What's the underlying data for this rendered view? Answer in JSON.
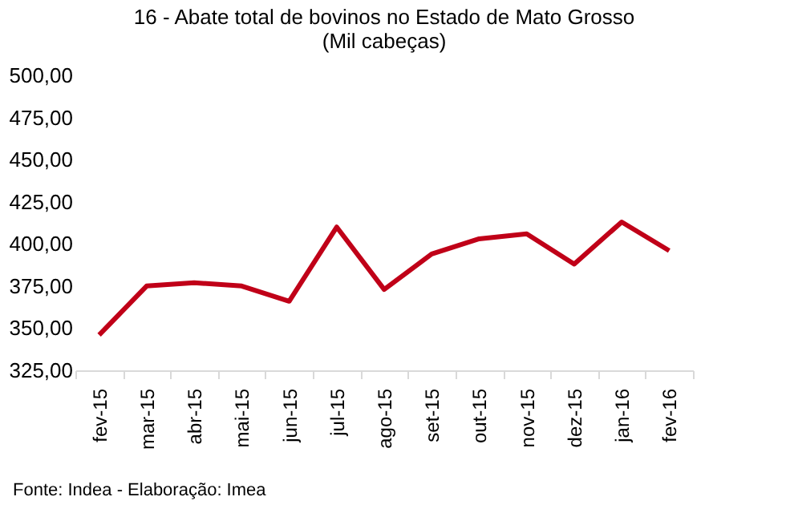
{
  "chart_data": {
    "type": "line",
    "title": [
      "16 - Abate total de bovinos no Estado de Mato Grosso",
      "(Mil cabeças)"
    ],
    "categories": [
      "fev-15",
      "mar-15",
      "abr-15",
      "mai-15",
      "jun-15",
      "jul-15",
      "ago-15",
      "set-15",
      "out-15",
      "nov-15",
      "dez-15",
      "jan-16",
      "fev-16"
    ],
    "series": [
      {
        "color": "#c00018",
        "values": [
          346,
          375,
          377,
          375,
          366,
          410,
          373,
          394,
          403,
          406,
          388,
          413,
          396
        ]
      }
    ],
    "ylim": [
      325,
      500
    ],
    "yticks": [
      {
        "value": 325,
        "label": "325,00"
      },
      {
        "value": 350,
        "label": "350,00"
      },
      {
        "value": 375,
        "label": "375,00"
      },
      {
        "value": 400,
        "label": "400,00"
      },
      {
        "value": 425,
        "label": "425,00"
      },
      {
        "value": 450,
        "label": "450,00"
      },
      {
        "value": 475,
        "label": "475,00"
      },
      {
        "value": 500,
        "label": "500,00"
      }
    ],
    "grid": false,
    "marker": "none",
    "line_style": "solid",
    "annotations": [
      "Fonte: Indea - Elaboração: Imea"
    ]
  }
}
